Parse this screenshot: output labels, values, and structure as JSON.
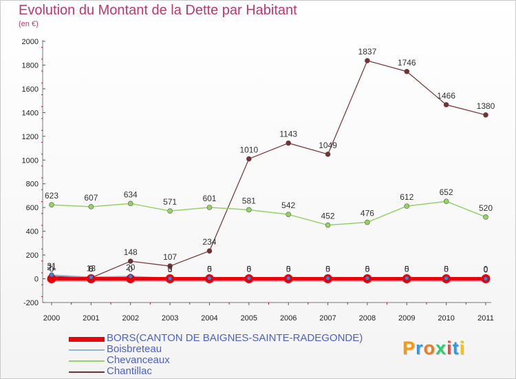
{
  "title": "Evolution du Montant de la Dette par Habitant",
  "subtitle": "(en €)",
  "logo": {
    "text": "Proxiti",
    "colors": [
      "#f39c12",
      "#3498db",
      "#e67e22",
      "#2ecc71",
      "#e74c3c",
      "#3498db",
      "#f1c40f"
    ]
  },
  "chart_data": {
    "type": "line",
    "x": [
      "2000",
      "2001",
      "2002",
      "2003",
      "2004",
      "2005",
      "2006",
      "2007",
      "2008",
      "2009",
      "2010",
      "2011"
    ],
    "ylim": [
      -200,
      2000
    ],
    "yticks": [
      "-200",
      "0",
      "200",
      "400",
      "600",
      "800",
      "1000",
      "1200",
      "1400",
      "1600",
      "1800",
      "2000"
    ],
    "grid": false,
    "legend_position": "bottom",
    "series": [
      {
        "name": "BORS(CANTON DE BAIGNES-SAINTE-RADEGONDE)",
        "color": "#e8000b",
        "values": [
          0,
          0,
          0,
          0,
          0,
          0,
          0,
          0,
          0,
          0,
          0,
          0
        ],
        "labels": [
          "0",
          "0",
          "0",
          "0",
          "0",
          "0",
          "0",
          "0",
          "0",
          "0",
          "0",
          "0"
        ]
      },
      {
        "name": "Boisbreteau",
        "color": "#8fb6d6",
        "values": [
          31,
          13,
          20,
          3,
          5,
          5,
          5,
          5,
          5,
          5,
          5,
          0
        ],
        "labels": [
          "31",
          "13",
          "20",
          "3",
          "5",
          "5",
          "5",
          "5",
          "5",
          "5",
          "5",
          "0"
        ]
      },
      {
        "name": "Chevanceaux",
        "color": "#92d364",
        "values": [
          623,
          607,
          634,
          571,
          601,
          581,
          542,
          452,
          476,
          612,
          652,
          520
        ],
        "labels": [
          "623",
          "607",
          "634",
          "571",
          "601",
          "581",
          "542",
          "452",
          "476",
          "612",
          "652",
          "520"
        ]
      },
      {
        "name": "Chantillac",
        "color": "#7a2e31",
        "values": [
          21,
          8,
          148,
          107,
          234,
          1010,
          1143,
          1049,
          1837,
          1746,
          1466,
          1380
        ],
        "labels": [
          "21",
          "8",
          "148",
          "107",
          "234",
          "1010",
          "1143",
          "1049",
          "1837",
          "1746",
          "1466",
          "1380"
        ]
      }
    ]
  }
}
